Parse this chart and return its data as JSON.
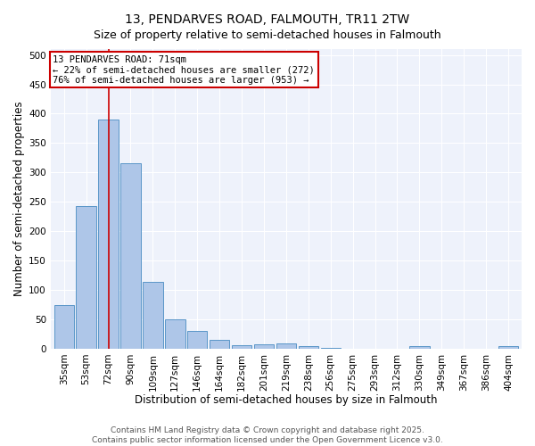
{
  "title": "13, PENDARVES ROAD, FALMOUTH, TR11 2TW",
  "subtitle": "Size of property relative to semi-detached houses in Falmouth",
  "xlabel": "Distribution of semi-detached houses by size in Falmouth",
  "ylabel": "Number of semi-detached properties",
  "categories": [
    "35sqm",
    "53sqm",
    "72sqm",
    "90sqm",
    "109sqm",
    "127sqm",
    "146sqm",
    "164sqm",
    "182sqm",
    "201sqm",
    "219sqm",
    "238sqm",
    "256sqm",
    "275sqm",
    "293sqm",
    "312sqm",
    "330sqm",
    "349sqm",
    "367sqm",
    "386sqm",
    "404sqm"
  ],
  "values": [
    74,
    243,
    390,
    315,
    113,
    50,
    30,
    15,
    6,
    8,
    9,
    5,
    2,
    0,
    0,
    0,
    4,
    0,
    0,
    0,
    4
  ],
  "bar_color": "#aec6e8",
  "bar_edge_color": "#5a96c8",
  "vline_x_index": 2,
  "vline_color": "#cc0000",
  "annotation_text": "13 PENDARVES ROAD: 71sqm\n← 22% of semi-detached houses are smaller (272)\n76% of semi-detached houses are larger (953) →",
  "annotation_box_color": "#ffffff",
  "annotation_box_edge": "#cc0000",
  "ylim": [
    0,
    510
  ],
  "yticks": [
    0,
    50,
    100,
    150,
    200,
    250,
    300,
    350,
    400,
    450,
    500
  ],
  "background_color": "#eef2fb",
  "footer_text": "Contains HM Land Registry data © Crown copyright and database right 2025.\nContains public sector information licensed under the Open Government Licence v3.0.",
  "title_fontsize": 10,
  "subtitle_fontsize": 9,
  "axis_label_fontsize": 8.5,
  "tick_fontsize": 7.5,
  "annotation_fontsize": 7.5,
  "footer_fontsize": 6.5
}
